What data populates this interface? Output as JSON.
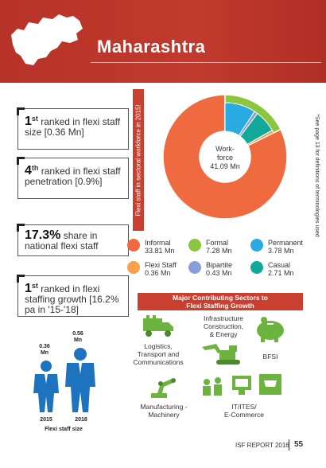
{
  "header": {
    "title": "Maharashtra"
  },
  "stats": [
    {
      "rank": "1",
      "sup": "st",
      "text": "ranked in flexi staff size [0.36 Mn]"
    },
    {
      "rank": "4",
      "sup": "th",
      "text": "ranked in flexi staff penetration [0.9%]"
    },
    {
      "rank": "17.3%",
      "sup": "",
      "text": "share in national flexi staff"
    },
    {
      "rank": "1",
      "sup": "st",
      "text": "ranked in flexi staffing growth [16.2% pa in '15-'18]"
    }
  ],
  "chart_side_label": "Flexi staff in sectoral workforce in 2015!",
  "side_note": "*See page 13 for definitions of terminologies used",
  "center": {
    "line1": "Work-",
    "line2": "force",
    "line3": "41.09 Mn"
  },
  "chart_data": {
    "type": "pie",
    "center_label": "Workforce 41.09 Mn",
    "outer_ring": [
      {
        "name": "Informal",
        "value": 33.81
      },
      {
        "name": "Formal",
        "value": 7.28
      }
    ],
    "inner_ring": [
      {
        "name": "Permanent",
        "value": 3.78
      },
      {
        "name": "Bipartite",
        "value": 0.43
      },
      {
        "name": "Casual",
        "value": 2.71
      },
      {
        "name": "Flexi Staff",
        "value": 0.36
      }
    ]
  },
  "legend": [
    {
      "name": "Informal",
      "value": "33.81 Mn",
      "color": "#ef6a3f"
    },
    {
      "name": "Formal",
      "value": "7.28 Mn",
      "color": "#8cc63f"
    },
    {
      "name": "Permanent",
      "value": "3.78 Mn",
      "color": "#29abe2"
    },
    {
      "name": "Flexi Staff",
      "value": "0.36 Mn",
      "color": "#f7a14b"
    },
    {
      "name": "Bipartite",
      "value": "0.43 Mn",
      "color": "#8a9fd8"
    },
    {
      "name": "Casual",
      "value": "2.71 Mn",
      "color": "#12a89a"
    }
  ],
  "sectors_title": {
    "line1": "Major Contributing Sectors to",
    "line2": "Flexi Staffing Growth"
  },
  "sectors": [
    {
      "label": "Logistics, Transport and Communications",
      "l1": "Logistics,",
      "l2": "Transport and",
      "l3": "Communications"
    },
    {
      "label": "Infrastructure Construction, & Energy",
      "l1": "Infrastructure",
      "l2": "Construction,",
      "l3": "& Energy"
    },
    {
      "label": "BFSI",
      "l1": "BFSI"
    },
    {
      "label": "Manufacturing - Machinery",
      "l1": "Manufacturing -",
      "l2": "Machinery"
    },
    {
      "label": "IT/ITES/ E-Commerce",
      "l1": "IT/ITES/",
      "l2": "E-Commerce"
    }
  ],
  "flexi_size": {
    "caption": "Flexi staff size",
    "years": [
      {
        "year": "2015",
        "value": "0.36",
        "unit": "Mn"
      },
      {
        "year": "2018",
        "value": "0.56",
        "unit": "Mn"
      }
    ]
  },
  "footer": {
    "report": "ISF REPORT 2016",
    "page": "55"
  }
}
